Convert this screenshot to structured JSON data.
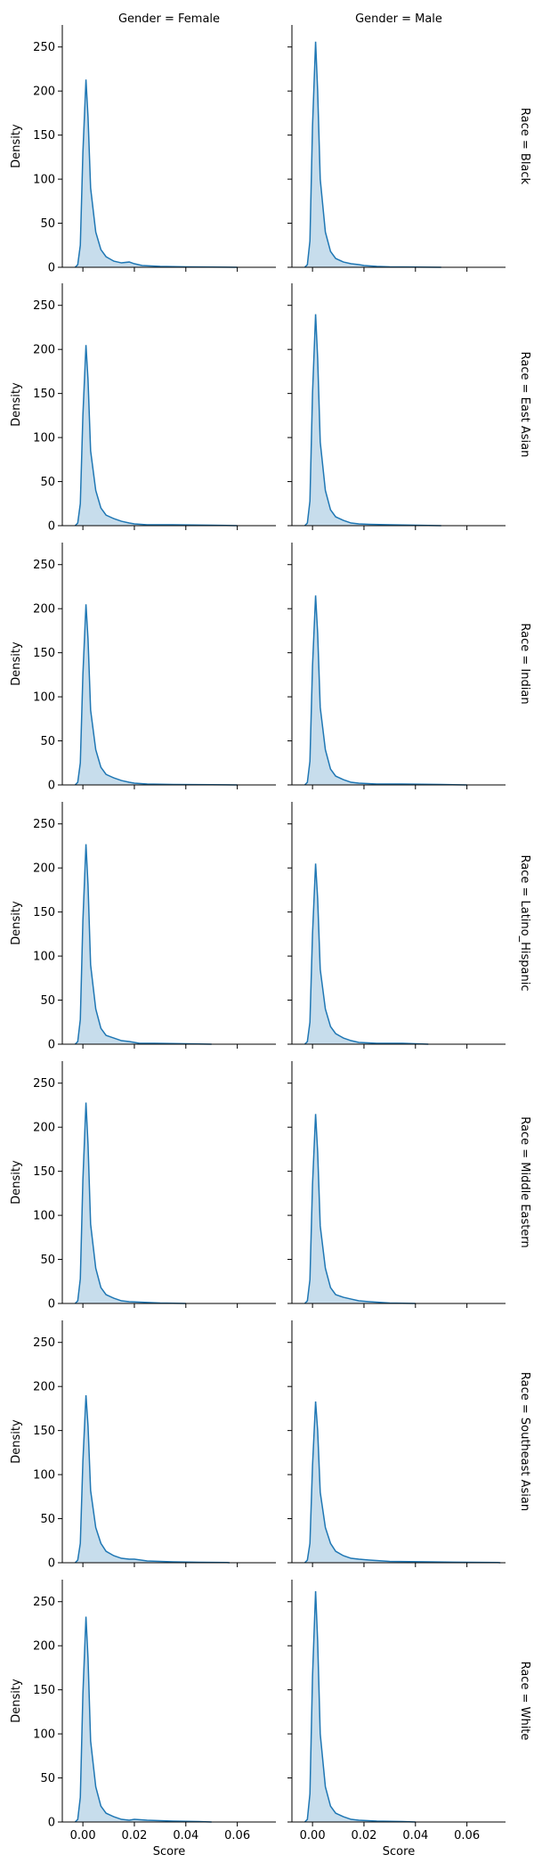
{
  "chart_data": {
    "type": "area",
    "kind": "facet-grid kde density plot",
    "x_label": "Score",
    "y_label": "Density",
    "x_lim": [
      -0.008,
      0.075
    ],
    "y_lim": [
      0,
      275
    ],
    "x_ticks": [
      0.0,
      0.02,
      0.04,
      0.06
    ],
    "x_tick_labels": [
      "0.00",
      "0.02",
      "0.04",
      "0.06"
    ],
    "y_ticks": [
      0,
      50,
      100,
      150,
      200,
      250
    ],
    "y_tick_labels": [
      "0",
      "50",
      "100",
      "150",
      "200",
      "250"
    ],
    "column_titles": [
      "Gender = Female",
      "Gender = Male"
    ],
    "row_titles": [
      "Race = Black",
      "Race = East Asian",
      "Race = Indian",
      "Race = Latino_Hispanic",
      "Race = Middle Eastern",
      "Race = Southeast Asian",
      "Race = White"
    ],
    "colors": {
      "line": "#1f77b4",
      "fill": "#1f77b4",
      "fill_opacity": 0.25,
      "axis": "#000000"
    },
    "panels": [
      {
        "row": 0,
        "col": 0,
        "points": [
          [
            -0.003,
            0
          ],
          [
            -0.002,
            3
          ],
          [
            -0.001,
            25
          ],
          [
            0.0,
            130
          ],
          [
            0.0012,
            213
          ],
          [
            0.002,
            170
          ],
          [
            0.003,
            90
          ],
          [
            0.005,
            40
          ],
          [
            0.007,
            20
          ],
          [
            0.009,
            12
          ],
          [
            0.012,
            7
          ],
          [
            0.015,
            5
          ],
          [
            0.018,
            6
          ],
          [
            0.02,
            4
          ],
          [
            0.023,
            2
          ],
          [
            0.03,
            1
          ],
          [
            0.04,
            0.5
          ],
          [
            0.05,
            0.3
          ],
          [
            0.06,
            0
          ]
        ]
      },
      {
        "row": 0,
        "col": 1,
        "points": [
          [
            -0.003,
            0
          ],
          [
            -0.002,
            3
          ],
          [
            -0.001,
            30
          ],
          [
            0.0,
            160
          ],
          [
            0.0012,
            256
          ],
          [
            0.002,
            200
          ],
          [
            0.003,
            100
          ],
          [
            0.005,
            40
          ],
          [
            0.007,
            18
          ],
          [
            0.009,
            10
          ],
          [
            0.012,
            6
          ],
          [
            0.015,
            4
          ],
          [
            0.018,
            3
          ],
          [
            0.02,
            2
          ],
          [
            0.025,
            1
          ],
          [
            0.03,
            0.5
          ],
          [
            0.04,
            0.3
          ],
          [
            0.05,
            0
          ]
        ]
      },
      {
        "row": 1,
        "col": 0,
        "points": [
          [
            -0.003,
            0
          ],
          [
            -0.002,
            3
          ],
          [
            -0.001,
            25
          ],
          [
            0.0,
            125
          ],
          [
            0.0012,
            205
          ],
          [
            0.002,
            165
          ],
          [
            0.003,
            85
          ],
          [
            0.005,
            40
          ],
          [
            0.007,
            20
          ],
          [
            0.009,
            12
          ],
          [
            0.012,
            8
          ],
          [
            0.015,
            5
          ],
          [
            0.018,
            3
          ],
          [
            0.02,
            2
          ],
          [
            0.025,
            1
          ],
          [
            0.035,
            1
          ],
          [
            0.05,
            0.5
          ],
          [
            0.06,
            0
          ]
        ]
      },
      {
        "row": 1,
        "col": 1,
        "points": [
          [
            -0.003,
            0
          ],
          [
            -0.002,
            3
          ],
          [
            -0.001,
            28
          ],
          [
            0.0,
            150
          ],
          [
            0.0012,
            240
          ],
          [
            0.002,
            190
          ],
          [
            0.003,
            95
          ],
          [
            0.005,
            40
          ],
          [
            0.007,
            18
          ],
          [
            0.009,
            10
          ],
          [
            0.012,
            6
          ],
          [
            0.015,
            3
          ],
          [
            0.018,
            2
          ],
          [
            0.022,
            1.5
          ],
          [
            0.03,
            1
          ],
          [
            0.04,
            0.5
          ],
          [
            0.05,
            0
          ]
        ]
      },
      {
        "row": 2,
        "col": 0,
        "points": [
          [
            -0.003,
            0
          ],
          [
            -0.002,
            3
          ],
          [
            -0.001,
            25
          ],
          [
            0.0,
            125
          ],
          [
            0.0012,
            205
          ],
          [
            0.002,
            165
          ],
          [
            0.003,
            85
          ],
          [
            0.005,
            40
          ],
          [
            0.007,
            20
          ],
          [
            0.009,
            12
          ],
          [
            0.012,
            8
          ],
          [
            0.015,
            5
          ],
          [
            0.018,
            3
          ],
          [
            0.02,
            2
          ],
          [
            0.025,
            1
          ],
          [
            0.035,
            0.5
          ],
          [
            0.05,
            0.3
          ],
          [
            0.06,
            0
          ]
        ]
      },
      {
        "row": 2,
        "col": 1,
        "points": [
          [
            -0.003,
            0
          ],
          [
            -0.002,
            3
          ],
          [
            -0.001,
            27
          ],
          [
            0.0,
            135
          ],
          [
            0.0012,
            215
          ],
          [
            0.002,
            172
          ],
          [
            0.003,
            88
          ],
          [
            0.005,
            40
          ],
          [
            0.007,
            18
          ],
          [
            0.009,
            10
          ],
          [
            0.012,
            6
          ],
          [
            0.015,
            3
          ],
          [
            0.018,
            2
          ],
          [
            0.025,
            1
          ],
          [
            0.035,
            1
          ],
          [
            0.05,
            0.5
          ],
          [
            0.06,
            0
          ]
        ]
      },
      {
        "row": 3,
        "col": 0,
        "points": [
          [
            -0.003,
            0
          ],
          [
            -0.002,
            3
          ],
          [
            -0.001,
            28
          ],
          [
            0.0,
            140
          ],
          [
            0.0012,
            227
          ],
          [
            0.002,
            180
          ],
          [
            0.003,
            90
          ],
          [
            0.005,
            40
          ],
          [
            0.007,
            18
          ],
          [
            0.009,
            10
          ],
          [
            0.012,
            7
          ],
          [
            0.015,
            4
          ],
          [
            0.018,
            3
          ],
          [
            0.022,
            1
          ],
          [
            0.028,
            1
          ],
          [
            0.04,
            0.5
          ],
          [
            0.05,
            0
          ]
        ]
      },
      {
        "row": 3,
        "col": 1,
        "points": [
          [
            -0.003,
            0
          ],
          [
            -0.002,
            3
          ],
          [
            -0.001,
            25
          ],
          [
            0.0,
            125
          ],
          [
            0.0012,
            205
          ],
          [
            0.002,
            165
          ],
          [
            0.003,
            85
          ],
          [
            0.005,
            40
          ],
          [
            0.007,
            20
          ],
          [
            0.009,
            12
          ],
          [
            0.012,
            7
          ],
          [
            0.015,
            4
          ],
          [
            0.018,
            2
          ],
          [
            0.025,
            1
          ],
          [
            0.035,
            1
          ],
          [
            0.045,
            0
          ]
        ]
      },
      {
        "row": 4,
        "col": 0,
        "points": [
          [
            -0.003,
            0
          ],
          [
            -0.002,
            3
          ],
          [
            -0.001,
            28
          ],
          [
            0.0,
            140
          ],
          [
            0.0012,
            228
          ],
          [
            0.002,
            180
          ],
          [
            0.003,
            90
          ],
          [
            0.005,
            40
          ],
          [
            0.007,
            18
          ],
          [
            0.009,
            10
          ],
          [
            0.012,
            6
          ],
          [
            0.015,
            3
          ],
          [
            0.018,
            2
          ],
          [
            0.022,
            1.5
          ],
          [
            0.03,
            0.5
          ],
          [
            0.04,
            0
          ]
        ]
      },
      {
        "row": 4,
        "col": 1,
        "points": [
          [
            -0.003,
            0
          ],
          [
            -0.002,
            3
          ],
          [
            -0.001,
            27
          ],
          [
            0.0,
            135
          ],
          [
            0.0012,
            215
          ],
          [
            0.002,
            172
          ],
          [
            0.003,
            88
          ],
          [
            0.005,
            40
          ],
          [
            0.007,
            18
          ],
          [
            0.009,
            10
          ],
          [
            0.012,
            7
          ],
          [
            0.015,
            5
          ],
          [
            0.018,
            3
          ],
          [
            0.022,
            2
          ],
          [
            0.03,
            0.5
          ],
          [
            0.04,
            0
          ]
        ]
      },
      {
        "row": 5,
        "col": 0,
        "points": [
          [
            -0.003,
            0
          ],
          [
            -0.002,
            3
          ],
          [
            -0.001,
            22
          ],
          [
            0.0,
            115
          ],
          [
            0.0012,
            190
          ],
          [
            0.002,
            155
          ],
          [
            0.003,
            82
          ],
          [
            0.005,
            40
          ],
          [
            0.007,
            22
          ],
          [
            0.009,
            13
          ],
          [
            0.012,
            8
          ],
          [
            0.015,
            5
          ],
          [
            0.018,
            4
          ],
          [
            0.02,
            4
          ],
          [
            0.025,
            2
          ],
          [
            0.035,
            1
          ],
          [
            0.045,
            0.5
          ],
          [
            0.056,
            0.3
          ],
          [
            0.057,
            0
          ]
        ]
      },
      {
        "row": 5,
        "col": 1,
        "points": [
          [
            -0.003,
            0
          ],
          [
            -0.002,
            3
          ],
          [
            -0.001,
            22
          ],
          [
            0.0,
            110
          ],
          [
            0.0012,
            183
          ],
          [
            0.002,
            150
          ],
          [
            0.003,
            80
          ],
          [
            0.005,
            40
          ],
          [
            0.007,
            22
          ],
          [
            0.009,
            13
          ],
          [
            0.012,
            8
          ],
          [
            0.015,
            5
          ],
          [
            0.018,
            4
          ],
          [
            0.022,
            3
          ],
          [
            0.03,
            1.5
          ],
          [
            0.045,
            1
          ],
          [
            0.06,
            0.5
          ],
          [
            0.072,
            0.3
          ],
          [
            0.073,
            0
          ]
        ]
      },
      {
        "row": 6,
        "col": 0,
        "points": [
          [
            -0.003,
            0
          ],
          [
            -0.002,
            3
          ],
          [
            -0.001,
            28
          ],
          [
            0.0,
            145
          ],
          [
            0.0012,
            233
          ],
          [
            0.002,
            185
          ],
          [
            0.003,
            92
          ],
          [
            0.005,
            40
          ],
          [
            0.007,
            18
          ],
          [
            0.009,
            10
          ],
          [
            0.012,
            6
          ],
          [
            0.015,
            3
          ],
          [
            0.018,
            2
          ],
          [
            0.02,
            3
          ],
          [
            0.025,
            2
          ],
          [
            0.035,
            1
          ],
          [
            0.045,
            0.5
          ],
          [
            0.05,
            0
          ]
        ]
      },
      {
        "row": 6,
        "col": 1,
        "points": [
          [
            -0.003,
            0
          ],
          [
            -0.002,
            3
          ],
          [
            -0.001,
            32
          ],
          [
            0.0,
            165
          ],
          [
            0.0012,
            262
          ],
          [
            0.002,
            205
          ],
          [
            0.003,
            100
          ],
          [
            0.005,
            40
          ],
          [
            0.007,
            18
          ],
          [
            0.009,
            10
          ],
          [
            0.012,
            6
          ],
          [
            0.015,
            3
          ],
          [
            0.018,
            2
          ],
          [
            0.025,
            1
          ],
          [
            0.035,
            0.5
          ],
          [
            0.04,
            0
          ]
        ]
      }
    ]
  }
}
